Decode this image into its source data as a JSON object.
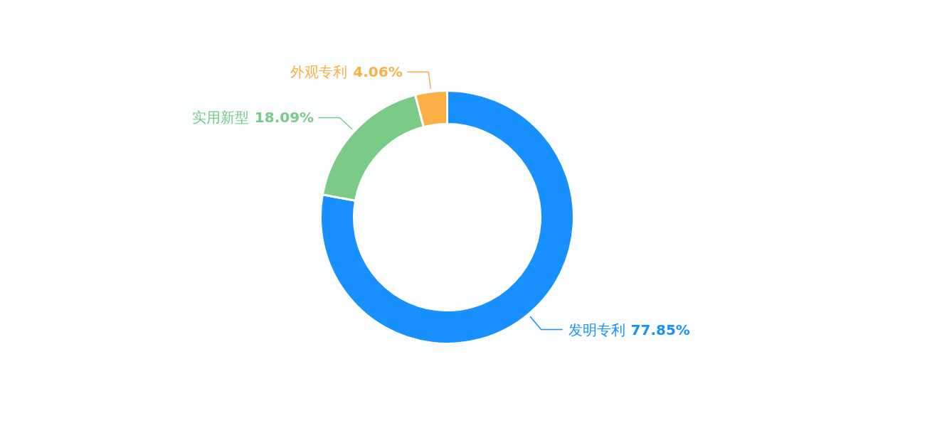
{
  "chart_data": {
    "type": "donut",
    "categories": [
      "发明专利",
      "实用新型",
      "外观专利"
    ],
    "values": [
      77.85,
      18.09,
      4.06
    ],
    "value_labels": [
      "77.85%",
      "18.09%",
      "4.06%"
    ],
    "colors": [
      "#1890ff",
      "#7acb88",
      "#fbb045"
    ]
  }
}
